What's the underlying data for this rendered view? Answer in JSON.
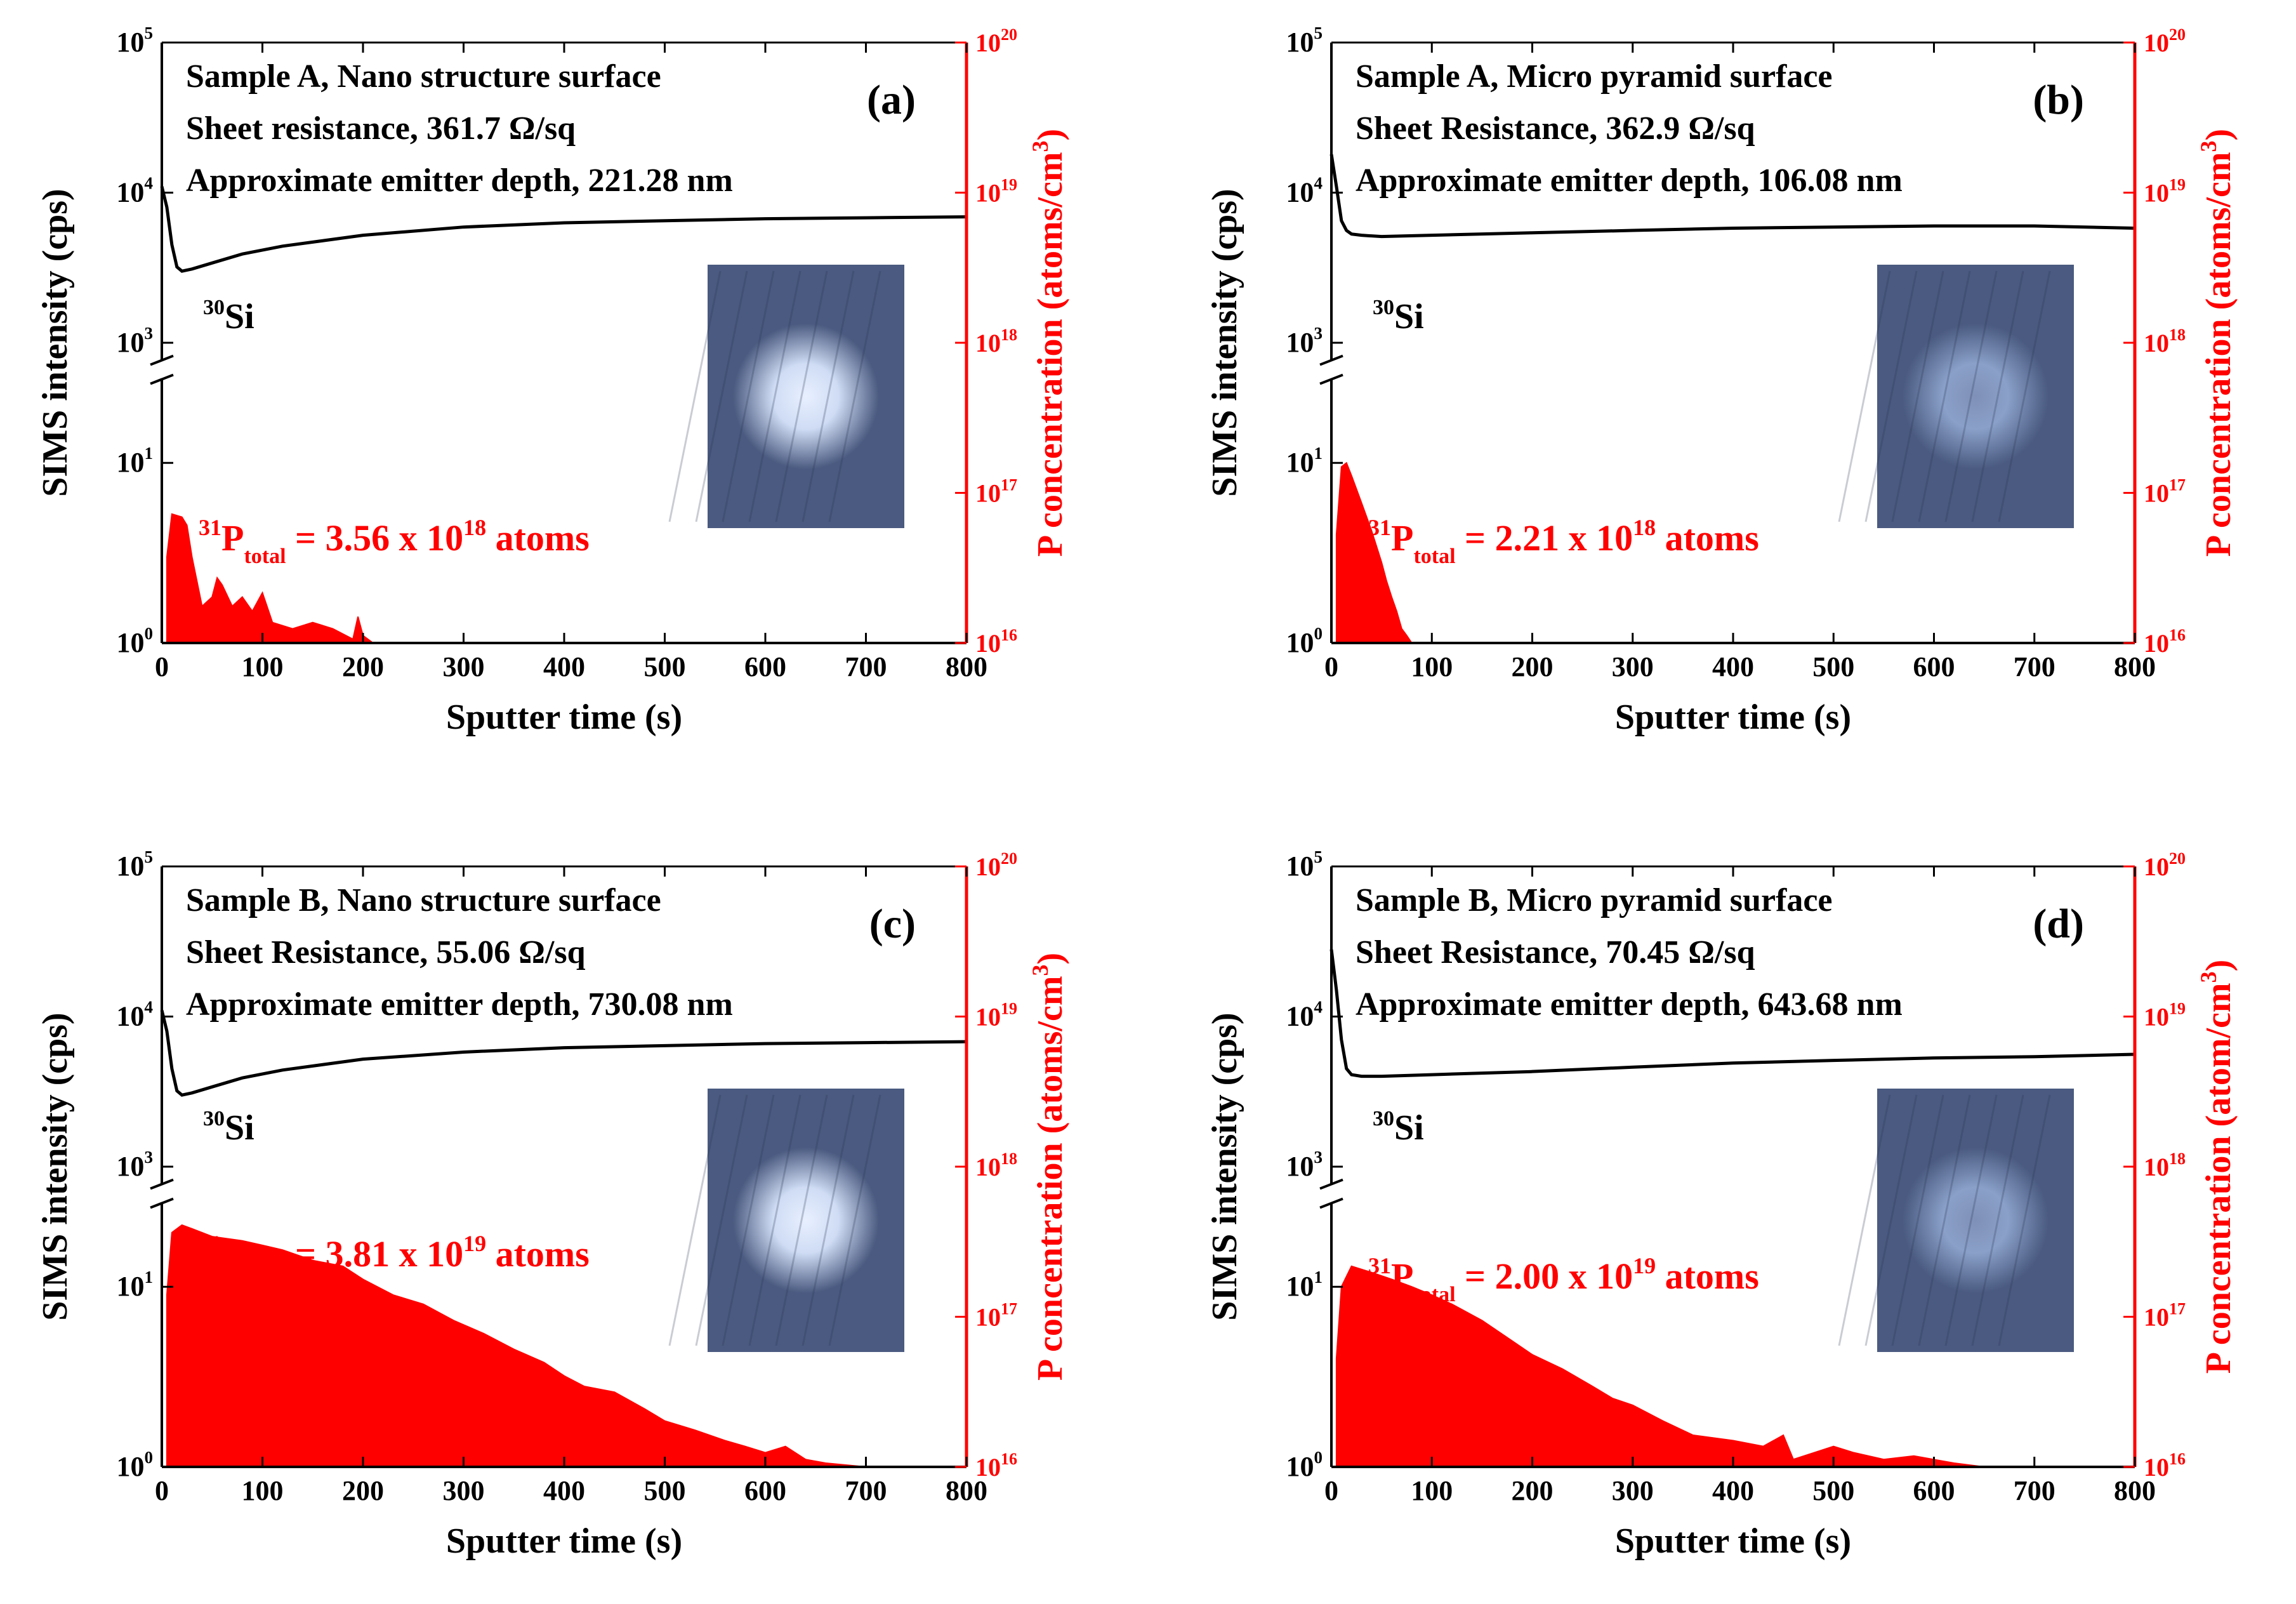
{
  "colors": {
    "si_line": "#000000",
    "p_fill": "#ff0000",
    "right_axis": "#ff0000",
    "inset_dark": "#4a5a80",
    "inset_light": "#8aa0c8"
  },
  "common": {
    "xlabel": "Sputter time (s)",
    "ylabel_left": "SIMS intensity (cps)",
    "x_ticks": [
      "0",
      "100",
      "200",
      "300",
      "400",
      "500",
      "600",
      "700",
      "800"
    ],
    "y_ticks_upper": {
      "e5": "5",
      "e4": "4",
      "e3": "3",
      "base": "10"
    },
    "y_ticks_lower": {
      "e1": "1",
      "e0": "0",
      "base": "10"
    },
    "y_ticks_right": {
      "e20": "20",
      "e19": "19",
      "e18": "18",
      "e17": "17",
      "e16": "16",
      "base": "10"
    },
    "si_label": {
      "mass": "30",
      "elem": "Si"
    },
    "p_label": {
      "mass": "31",
      "elem": "P",
      "sub": "total",
      "eq": " = ",
      "units": " atoms"
    }
  },
  "chart_data": [
    {
      "type": "line+area",
      "panel": "(a)",
      "title_lines": [
        "Sample A, Nano structure surface",
        "Sheet resistance, 361.7 Ω/sq",
        "Approximate emitter depth, 221.28 nm"
      ],
      "ylabel_right": "P concentration (atoms/cm",
      "ylabel_right_sup": "3",
      "ylabel_right_close": ")",
      "p_total_mant": "3.56 x 10",
      "p_total_exp": "18",
      "xlim": [
        0,
        800
      ],
      "ylim_upper_log": [
        3,
        5
      ],
      "ylim_lower_log": [
        0,
        1.4
      ],
      "ylim_right_log": [
        16,
        20
      ],
      "si_series": {
        "name": "30Si",
        "x": [
          0,
          5,
          10,
          15,
          20,
          30,
          50,
          80,
          120,
          200,
          300,
          400,
          500,
          600,
          700,
          800
        ],
        "y": [
          11000,
          8000,
          4500,
          3200,
          3000,
          3100,
          3400,
          3900,
          4400,
          5200,
          5900,
          6300,
          6500,
          6700,
          6800,
          6900
        ]
      },
      "p_series": {
        "name": "31P",
        "x": [
          5,
          10,
          20,
          25,
          30,
          40,
          50,
          55,
          60,
          70,
          80,
          90,
          100,
          110,
          130,
          150,
          170,
          190,
          195,
          200,
          210,
          220
        ],
        "y": [
          3,
          5.2,
          5,
          4.5,
          3,
          1.6,
          1.8,
          2.3,
          2.1,
          1.6,
          1.8,
          1.5,
          1.9,
          1.3,
          1.2,
          1.3,
          1.2,
          1.05,
          1.4,
          1.1,
          1.0,
          1.0
        ]
      }
    },
    {
      "type": "line+area",
      "panel": "(b)",
      "title_lines": [
        "Sample A, Micro pyramid surface",
        "Sheet Resistance, 362.9 Ω/sq",
        "Approximate emitter depth, 106.08 nm"
      ],
      "ylabel_right": "P concentration (atoms/cm",
      "ylabel_right_sup": "3",
      "ylabel_right_close": ")",
      "p_total_mant": "2.21 x 10",
      "p_total_exp": "18",
      "xlim": [
        0,
        800
      ],
      "ylim_upper_log": [
        3,
        5
      ],
      "ylim_lower_log": [
        0,
        1.4
      ],
      "ylim_right_log": [
        16,
        20
      ],
      "si_series": {
        "name": "30Si",
        "x": [
          0,
          5,
          10,
          15,
          20,
          30,
          50,
          100,
          200,
          300,
          400,
          500,
          600,
          700,
          800
        ],
        "y": [
          18000,
          11000,
          6500,
          5600,
          5300,
          5200,
          5100,
          5200,
          5400,
          5600,
          5800,
          5900,
          6000,
          6000,
          5800
        ]
      },
      "p_series": {
        "name": "31P",
        "x": [
          5,
          10,
          15,
          20,
          30,
          40,
          50,
          55,
          60,
          65,
          70,
          75,
          80
        ],
        "y": [
          4,
          9.5,
          10,
          8.5,
          6,
          4.2,
          2.8,
          2.2,
          1.8,
          1.5,
          1.2,
          1.1,
          1.0
        ]
      }
    },
    {
      "type": "line+area",
      "panel": "(c)",
      "title_lines": [
        "Sample B, Nano structure surface",
        "Sheet Resistance, 55.06 Ω/sq",
        "Approximate emitter depth, 730.08 nm"
      ],
      "ylabel_right": "P concentration (atoms/cm",
      "ylabel_right_sup": "3",
      "ylabel_right_close": ")",
      "p_total_mant": "3.81 x 10",
      "p_total_exp": "19",
      "xlim": [
        0,
        800
      ],
      "ylim_upper_log": [
        3,
        5
      ],
      "ylim_lower_log": [
        0,
        1.4
      ],
      "ylim_right_log": [
        16,
        20
      ],
      "si_series": {
        "name": "30Si",
        "x": [
          0,
          5,
          10,
          15,
          20,
          30,
          50,
          80,
          120,
          200,
          300,
          400,
          500,
          600,
          700,
          800
        ],
        "y": [
          11000,
          8000,
          4500,
          3200,
          3000,
          3100,
          3400,
          3900,
          4400,
          5200,
          5800,
          6200,
          6400,
          6600,
          6700,
          6800
        ]
      },
      "p_series": {
        "name": "31P",
        "x": [
          5,
          10,
          20,
          30,
          50,
          80,
          100,
          120,
          150,
          180,
          200,
          230,
          260,
          290,
          320,
          350,
          380,
          400,
          420,
          450,
          480,
          500,
          530,
          560,
          580,
          600,
          620,
          640,
          660,
          700
        ],
        "y": [
          9,
          20,
          22,
          21,
          19,
          18,
          17,
          16,
          14,
          13,
          11,
          9,
          8,
          6.5,
          5.5,
          4.5,
          3.8,
          3.2,
          2.8,
          2.6,
          2.1,
          1.8,
          1.6,
          1.4,
          1.3,
          1.2,
          1.3,
          1.1,
          1.05,
          1.0
        ]
      }
    },
    {
      "type": "line+area",
      "panel": "(d)",
      "title_lines": [
        "Sample B, Micro pyramid surface",
        "Sheet Resistance, 70.45 Ω/sq",
        "Approximate emitter depth, 643.68 nm"
      ],
      "ylabel_right": "P concentration (atom/cm",
      "ylabel_right_sup": "3",
      "ylabel_right_close": ")",
      "p_total_mant": "2.00 x 10",
      "p_total_exp": "19",
      "xlim": [
        0,
        800
      ],
      "ylim_upper_log": [
        3,
        5
      ],
      "ylim_lower_log": [
        0,
        1.4
      ],
      "ylim_right_log": [
        16,
        20
      ],
      "si_series": {
        "name": "30Si",
        "x": [
          0,
          5,
          10,
          15,
          20,
          30,
          50,
          100,
          200,
          300,
          400,
          500,
          600,
          700,
          800
        ],
        "y": [
          28000,
          15000,
          7000,
          4500,
          4100,
          4000,
          4000,
          4100,
          4300,
          4600,
          4900,
          5100,
          5300,
          5400,
          5600
        ]
      },
      "p_series": {
        "name": "31P",
        "x": [
          5,
          10,
          20,
          40,
          60,
          80,
          100,
          120,
          150,
          180,
          200,
          230,
          260,
          280,
          300,
          330,
          360,
          400,
          430,
          450,
          460,
          500,
          520,
          550,
          580,
          620,
          650
        ],
        "y": [
          4,
          10,
          13,
          12,
          11,
          10,
          9,
          8,
          6.5,
          5,
          4.2,
          3.5,
          2.8,
          2.4,
          2.2,
          1.8,
          1.5,
          1.4,
          1.3,
          1.5,
          1.1,
          1.3,
          1.2,
          1.1,
          1.15,
          1.05,
          1.0
        ]
      }
    }
  ]
}
